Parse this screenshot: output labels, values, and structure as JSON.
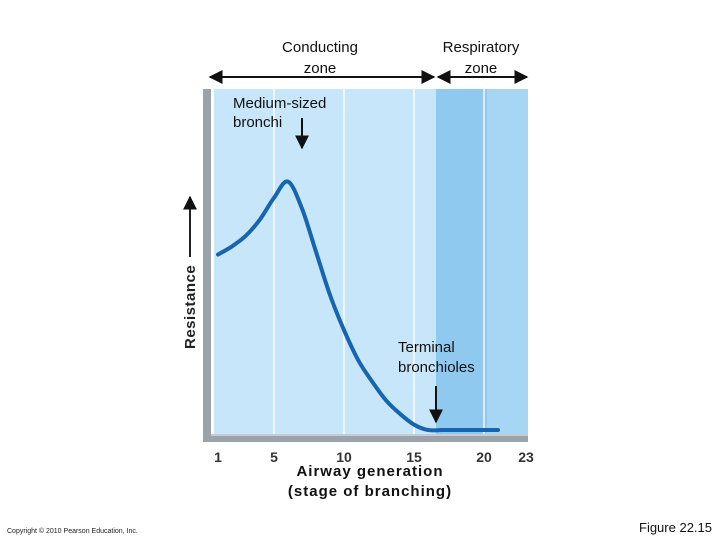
{
  "chart_data": {
    "type": "line",
    "title": "",
    "xlabel": "Airway generation\n(stage of branching)",
    "ylabel": "Resistance",
    "xlim": [
      1,
      23
    ],
    "ylim": [
      0,
      100
    ],
    "x_ticks": [
      "1",
      "5",
      "10",
      "15",
      "20",
      "23"
    ],
    "x_tick_values": [
      1,
      5,
      10,
      15,
      20,
      23
    ],
    "series": [
      {
        "name": "Resistance",
        "x": [
          1,
          2,
          3,
          4,
          5,
          6,
          7,
          8,
          9,
          10,
          11,
          12,
          13,
          14,
          15,
          16,
          17,
          18,
          19,
          20,
          21
        ],
        "y": [
          65,
          68,
          72,
          78,
          86,
          92,
          82,
          66,
          50,
          37,
          26,
          18,
          11,
          6,
          2,
          0,
          0,
          0,
          0,
          0,
          0
        ]
      }
    ],
    "zones": [
      {
        "name": "Conducting zone",
        "from": 1,
        "to": 16
      },
      {
        "name": "Respiratory zone",
        "from": 16,
        "to": 23
      }
    ],
    "annotations": [
      {
        "text": "Medium-sized\nbronchi",
        "x": 6,
        "y": 92
      },
      {
        "text": "Terminal\nbronchioles",
        "x": 16,
        "y": 0
      }
    ],
    "colors": {
      "conducting": "#c8e6f9",
      "respiratory_band_1": "#8fc9ef",
      "respiratory_band_2": "#a7d6f4",
      "curve": "#1565b0",
      "frame": "#9aa3aa",
      "grid": "#ffffff"
    }
  },
  "labels": {
    "zone_conducting_line1": "Conducting",
    "zone_conducting_line2": "zone",
    "zone_respiratory_line1": "Respiratory",
    "zone_respiratory_line2": "zone",
    "medium_line1": "Medium-sized",
    "medium_line2": "bronchi",
    "terminal_line1": "Terminal",
    "terminal_line2": "bronchioles",
    "ylabel": "Resistance",
    "xlabel_line1": "Airway generation",
    "xlabel_line2": "(stage of branching)"
  },
  "footer": {
    "copyright": "Copyright © 2010 Pearson Education, Inc.",
    "figure": "Figure 22.15"
  }
}
